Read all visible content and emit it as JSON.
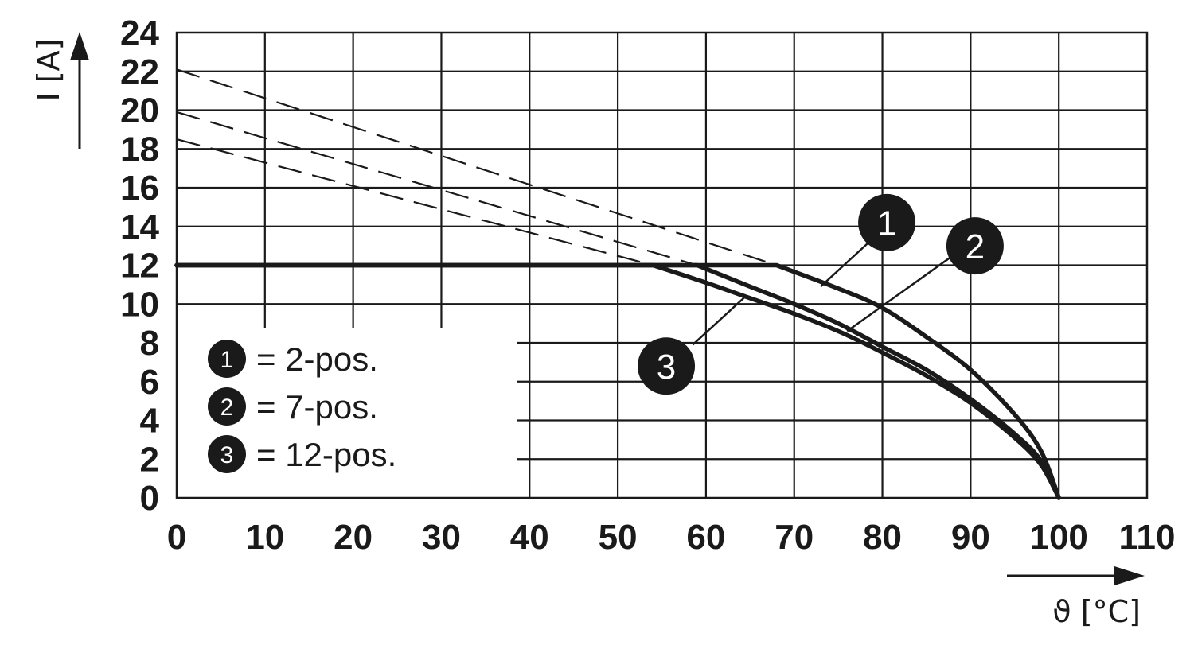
{
  "chart_data": {
    "type": "line",
    "title": "",
    "xlabel": "ϑ [°C]",
    "ylabel": "I [A]",
    "xlim": [
      0,
      110
    ],
    "ylim": [
      0,
      24
    ],
    "x_ticks": [
      0,
      10,
      20,
      30,
      40,
      50,
      60,
      70,
      80,
      90,
      100,
      110
    ],
    "y_ticks": [
      0,
      2,
      4,
      6,
      8,
      10,
      12,
      14,
      16,
      18,
      20,
      22,
      24
    ],
    "grid": true,
    "legend_position": "bottom-left",
    "colors": {
      "line": "#1a1a1a",
      "grid": "#1a1a1a",
      "marker_fill": "#1a1a1a",
      "marker_text": "#ffffff"
    },
    "legend": [
      {
        "marker": "1",
        "text": "= 2-pos."
      },
      {
        "marker": "2",
        "text": "= 7-pos."
      },
      {
        "marker": "3",
        "text": "= 12-pos."
      }
    ],
    "series": [
      {
        "marker": "1",
        "style": "solid",
        "points": [
          [
            0,
            12
          ],
          [
            68,
            12
          ],
          [
            75,
            10.8
          ],
          [
            80,
            9.8
          ],
          [
            85,
            8.3
          ],
          [
            90,
            6.6
          ],
          [
            95,
            4.3
          ],
          [
            98,
            2.4
          ],
          [
            100,
            0
          ]
        ]
      },
      {
        "marker": "2",
        "style": "solid",
        "points": [
          [
            0,
            12
          ],
          [
            59,
            12
          ],
          [
            65,
            10.9
          ],
          [
            70,
            10.0
          ],
          [
            75,
            9.0
          ],
          [
            80,
            7.8
          ],
          [
            85,
            6.6
          ],
          [
            90,
            5.1
          ],
          [
            95,
            3.3
          ],
          [
            98,
            1.9
          ],
          [
            100,
            0
          ]
        ]
      },
      {
        "marker": "3",
        "style": "solid",
        "points": [
          [
            0,
            12
          ],
          [
            54,
            12
          ],
          [
            60,
            11.1
          ],
          [
            65,
            10.3
          ],
          [
            70,
            9.5
          ],
          [
            75,
            8.6
          ],
          [
            80,
            7.5
          ],
          [
            85,
            6.3
          ],
          [
            90,
            4.9
          ],
          [
            95,
            3.1
          ],
          [
            98,
            1.7
          ],
          [
            100,
            0
          ]
        ]
      },
      {
        "style": "dashed",
        "points": [
          [
            0,
            22.1
          ],
          [
            68,
            12.0
          ]
        ]
      },
      {
        "style": "dashed",
        "points": [
          [
            0,
            19.9
          ],
          [
            59,
            12.0
          ]
        ]
      },
      {
        "style": "dashed",
        "points": [
          [
            0,
            18.5
          ],
          [
            54,
            12.0
          ]
        ]
      }
    ],
    "callouts": [
      {
        "marker": "1",
        "leader_from": [
          73,
          10.9
        ],
        "leader_to": [
          78.5,
          13.2
        ],
        "badge_at": [
          80.5,
          14.2
        ]
      },
      {
        "marker": "2",
        "leader_from": [
          76,
          8.6
        ],
        "leader_to": [
          88,
          12.5
        ],
        "badge_at": [
          90.5,
          13.0
        ]
      },
      {
        "marker": "3",
        "leader_from": [
          64.5,
          10.4
        ],
        "leader_to": [
          58.5,
          7.9
        ],
        "badge_at": [
          55.5,
          6.8
        ]
      }
    ]
  }
}
